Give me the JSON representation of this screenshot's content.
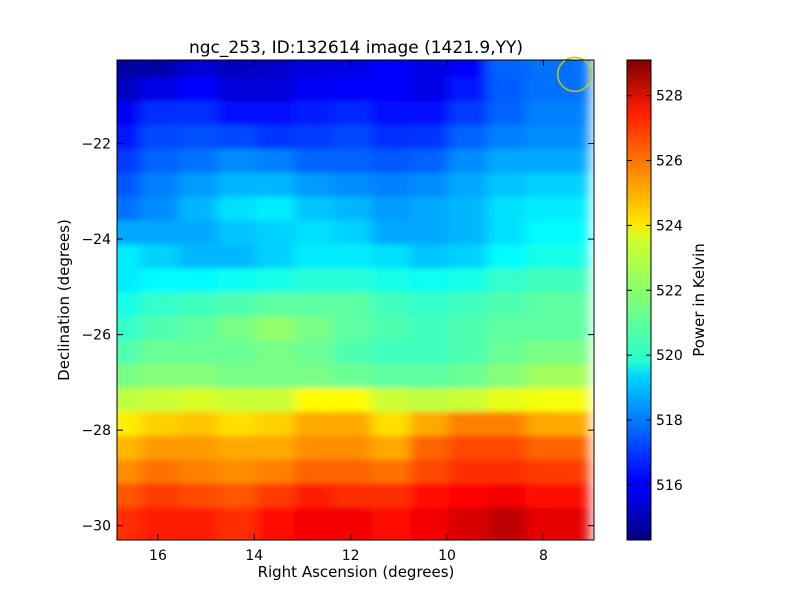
{
  "chart_data": {
    "type": "heatmap",
    "title": "ngc_253, ID:132614 image (1421.9,YY)",
    "xlabel": "Right Ascension (degrees)",
    "ylabel": "Declination (degrees)",
    "xlim": [
      16.85,
      6.95
    ],
    "ylim": [
      -30.3,
      -20.25
    ],
    "x_ticks": [
      16,
      14,
      12,
      10,
      8
    ],
    "y_ticks": [
      -22,
      -24,
      -26,
      -28,
      -30
    ],
    "colorbar": {
      "label": "Power in Kelvin",
      "range": [
        514.3,
        529.1
      ],
      "ticks": [
        516,
        518,
        520,
        522,
        524,
        526,
        528
      ],
      "colormap": "jet"
    },
    "marker": {
      "shape": "circle",
      "ra": 7.35,
      "dec": -20.55,
      "color": "#c8c800"
    },
    "rows": [
      {
        "dec": -20.5,
        "values": [
          514.8,
          514.9,
          515.6,
          515.2,
          515.4,
          515.7,
          515.8,
          516.2,
          515.8,
          516.2,
          517.6,
          517.8
        ]
      },
      {
        "dec": -21.0,
        "values": [
          515.3,
          515.8,
          516.2,
          515.6,
          515.6,
          516.0,
          516.2,
          516.2,
          515.8,
          516.5,
          517.5,
          517.8
        ]
      },
      {
        "dec": -21.5,
        "values": [
          516.0,
          516.8,
          516.8,
          516.4,
          516.3,
          516.6,
          516.7,
          516.4,
          516.4,
          517.0,
          517.6,
          518.0
        ]
      },
      {
        "dec": -22.0,
        "values": [
          516.5,
          517.2,
          517.3,
          517.2,
          516.9,
          517.0,
          517.2,
          516.8,
          516.9,
          517.6,
          518.0,
          518.2
        ]
      },
      {
        "dec": -22.5,
        "values": [
          517.0,
          517.6,
          517.8,
          518.2,
          518.0,
          517.6,
          517.6,
          517.4,
          517.6,
          518.2,
          518.6,
          518.6
        ]
      },
      {
        "dec": -23.0,
        "values": [
          517.4,
          518.0,
          518.4,
          518.8,
          518.8,
          518.4,
          518.2,
          518.0,
          518.2,
          518.6,
          519.0,
          519.2
        ]
      },
      {
        "dec": -23.5,
        "values": [
          517.8,
          518.2,
          518.8,
          519.4,
          519.6,
          519.0,
          518.8,
          518.4,
          518.6,
          518.8,
          519.4,
          519.6
        ]
      },
      {
        "dec": -24.0,
        "values": [
          518.6,
          518.6,
          518.6,
          519.0,
          519.2,
          519.4,
          519.2,
          518.6,
          518.6,
          518.8,
          519.4,
          519.8
        ]
      },
      {
        "dec": -24.5,
        "values": [
          519.6,
          519.2,
          518.8,
          518.8,
          519.2,
          519.6,
          519.6,
          519.4,
          519.0,
          519.2,
          519.8,
          520.2
        ]
      },
      {
        "dec": -25.0,
        "values": [
          519.6,
          519.8,
          519.8,
          520.0,
          520.2,
          520.4,
          520.4,
          520.2,
          520.0,
          520.2,
          520.6,
          520.8
        ]
      },
      {
        "dec": -25.5,
        "values": [
          520.2,
          520.6,
          520.8,
          521.0,
          521.2,
          521.2,
          521.2,
          520.8,
          520.6,
          520.8,
          521.0,
          521.2
        ]
      },
      {
        "dec": -26.0,
        "values": [
          520.6,
          521.0,
          521.2,
          521.6,
          522.0,
          521.6,
          521.2,
          521.0,
          520.8,
          521.0,
          521.2,
          521.2
        ]
      },
      {
        "dec": -26.5,
        "values": [
          521.0,
          521.4,
          521.4,
          521.4,
          521.6,
          521.4,
          521.0,
          520.8,
          520.8,
          521.0,
          521.4,
          521.6
        ]
      },
      {
        "dec": -27.0,
        "values": [
          521.6,
          521.8,
          521.8,
          521.6,
          521.6,
          521.6,
          521.4,
          521.2,
          521.2,
          521.4,
          521.8,
          522.2
        ]
      },
      {
        "dec": -27.5,
        "values": [
          522.6,
          522.8,
          523.0,
          522.8,
          522.8,
          523.6,
          523.6,
          522.8,
          522.6,
          522.8,
          523.2,
          523.4
        ]
      },
      {
        "dec": -28.0,
        "values": [
          523.8,
          524.2,
          524.4,
          524.0,
          524.2,
          524.8,
          524.8,
          524.0,
          524.8,
          525.4,
          525.4,
          524.8
        ]
      },
      {
        "dec": -28.5,
        "values": [
          524.6,
          525.0,
          525.0,
          524.8,
          524.8,
          525.2,
          525.2,
          524.8,
          525.8,
          526.2,
          526.2,
          525.8
        ]
      },
      {
        "dec": -29.0,
        "values": [
          525.2,
          525.6,
          525.4,
          525.2,
          525.4,
          525.8,
          525.8,
          525.6,
          526.2,
          526.6,
          526.6,
          526.4
        ]
      },
      {
        "dec": -29.5,
        "values": [
          526.0,
          526.4,
          526.2,
          526.0,
          526.4,
          526.8,
          526.6,
          526.6,
          527.0,
          527.2,
          527.4,
          527.0
        ]
      },
      {
        "dec": -30.0,
        "values": [
          526.6,
          526.8,
          526.8,
          526.6,
          527.0,
          527.4,
          527.4,
          527.0,
          527.4,
          527.8,
          528.2,
          527.6
        ]
      }
    ],
    "columns_ra": [
      16.5,
      15.7,
      14.9,
      14.1,
      13.3,
      12.5,
      11.7,
      10.9,
      10.1,
      9.3,
      8.5,
      7.7
    ],
    "grid": false,
    "legend": "none"
  }
}
